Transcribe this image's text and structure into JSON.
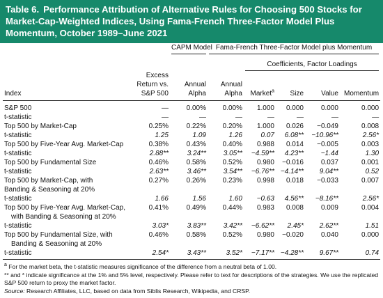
{
  "title": {
    "label": "Table 6.",
    "text": "Performance Attribution of Alternative Rules for Choosing 500 Stocks for Market-Cap-Weighted Indices, Using Fama-French Three-Factor Model Plus Momentum, October 1989–June 2021"
  },
  "table": {
    "groups": {
      "capm": "CAPM Model",
      "ff": "Fama-French Three-Factor Model plus Momentum",
      "coef": "Coefficients, Factor Loadings"
    },
    "columns": [
      "Index",
      "Excess Return vs. S&P 500",
      "Annual Alpha",
      "Annual Alpha",
      "Market",
      "Size",
      "Value",
      "Momentum"
    ],
    "market_note": "a",
    "rows": [
      [
        [
          "S&P 500"
        ],
        "—",
        "0.00%",
        "0.00%",
        "1.000",
        "0.000",
        "0.000",
        "0.000"
      ],
      [
        [
          "t-statistic"
        ],
        "—",
        "—",
        "—",
        "—",
        "—",
        "—",
        "—"
      ],
      [
        [
          "Top 500 by Market-Cap"
        ],
        "0.25%",
        "0.22%",
        "0.20%",
        "1.000",
        "0.026",
        "−0.049",
        "0.008"
      ],
      [
        [
          "t-statistic"
        ],
        "1.25",
        "1.09",
        "1.26",
        "0.07",
        "6.08**",
        "−10.96**",
        "2.56*"
      ],
      [
        [
          "Top 500 by Five-Year Avg. Market-Cap"
        ],
        "0.38%",
        "0.43%",
        "0.40%",
        "0.988",
        "0.014",
        "−0.005",
        "0.003"
      ],
      [
        [
          "t-statistic"
        ],
        "2.88**",
        "3.24**",
        "3.05**",
        "−4.59**",
        "4.23**",
        "−1.44",
        "1.30"
      ],
      [
        [
          "Top 500 by Fundamental Size"
        ],
        "0.46%",
        "0.58%",
        "0.52%",
        "0.980",
        "−0.016",
        "0.037",
        "0.001"
      ],
      [
        [
          "t-statistic"
        ],
        "2.63**",
        "3.46**",
        "3.54**",
        "−6.76**",
        "−4.14**",
        "9.04**",
        "0.52"
      ],
      [
        [
          "Top 500 by Market-Cap, with",
          "Banding & Seasoning at 20%"
        ],
        "0.27%",
        "0.26%",
        "0.23%",
        "0.998",
        "0.018",
        "−0.033",
        "0.007"
      ],
      [
        [
          "t-statistic"
        ],
        "1.66",
        "1.56",
        "1.60",
        "−0.63",
        "4.56**",
        "−8.16**",
        "2.56*"
      ],
      [
        [
          "Top 500 by Five-Year Avg. Market-Cap,",
          "with Banding & Seasoning at 20%"
        ],
        "0.41%",
        "0.49%",
        "0.44%",
        "0.983",
        "0.008",
        "0.009",
        "0.004"
      ],
      [
        [
          "t-statistic"
        ],
        "3.03*",
        "3.83**",
        "3.42**",
        "−6.62**",
        "2.45*",
        "2.62**",
        "1.51"
      ],
      [
        [
          "Top 500 by Fundamental Size, with",
          "Banding & Seasoning at 20%"
        ],
        "0.46%",
        "0.58%",
        "0.52%",
        "0.980",
        "−0.020",
        "0.040",
        "0.000"
      ],
      [
        [
          "t-statistic"
        ],
        "2.54*",
        "3.43**",
        "3.52*",
        "−7.17**",
        "−4.28**",
        "9.67**",
        "0.74"
      ]
    ]
  },
  "notes": {
    "beta": {
      "marker": "a",
      "text": " For the market beta, the t-statistic measures significance of the difference from a neutral beta of 1.00."
    },
    "significance": "** and * indicate significance at the 1% and 5% level, respectively. Please refer to text for descriptions of the strategies. We use the replicated S&P 500 return to proxy the market factor.",
    "source": {
      "label": "Source:",
      "text": " Research Affiliates, LLC, based on data from Siblis Research, Wikipedia, and CRSP."
    }
  }
}
